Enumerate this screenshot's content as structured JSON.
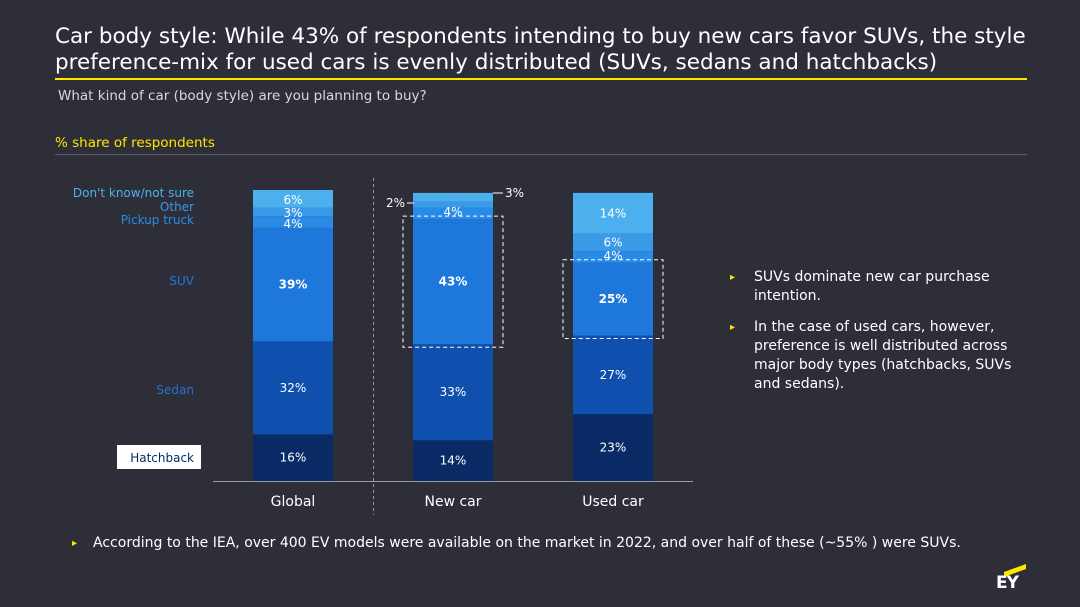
{
  "title": "Car body style: While 43% of respondents intending to buy new cars favor SUVs, the style preference-mix for used cars is evenly distributed (SUVs, sedans and hatchbacks)",
  "subtitle": "What kind of car (body style) are you planning to buy?",
  "axis_caption": "% share of respondents",
  "bullets": [
    "SUVs dominate new car purchase intention.",
    "In the case of used cars, however, preference is well distributed across major body types (hatchbacks, SUVs and sedans)."
  ],
  "footnote": "According to the IEA, over 400 EV models were available on the market in 2022, and over half of these (~55% ) were SUVs.",
  "logo_text": "EY",
  "colors": {
    "background": "#2e2e38",
    "accent": "#ffe600",
    "hatchback": "#0a2a66",
    "sedan": "#0f4fad",
    "suv": "#1e78dc",
    "pickup": "#2a8be6",
    "other": "#3a9ae8",
    "dont_know": "#4cb0ef"
  },
  "chart_data": {
    "type": "bar",
    "stacked": true,
    "categories": [
      "Global",
      "New car",
      "Used car"
    ],
    "series": [
      {
        "name": "Hatchback",
        "values": [
          16,
          14,
          23
        ],
        "labels": [
          "16%",
          "14%",
          "23%"
        ]
      },
      {
        "name": "Sedan",
        "values": [
          32,
          33,
          27
        ],
        "labels": [
          "32%",
          "33%",
          "27%"
        ]
      },
      {
        "name": "SUV",
        "values": [
          39,
          43,
          25
        ],
        "labels": [
          "39%",
          "43%",
          "25%"
        ]
      },
      {
        "name": "Pickup truck",
        "values": [
          4,
          4,
          4
        ],
        "labels": [
          "4%",
          "4%",
          "4%"
        ]
      },
      {
        "name": "Other",
        "values": [
          3,
          2,
          6
        ],
        "labels": [
          "3%",
          "2%",
          "6%"
        ]
      },
      {
        "name": "Don't know/not sure",
        "values": [
          6,
          3,
          14
        ],
        "labels": [
          "6%",
          "3%",
          "14%"
        ]
      }
    ],
    "highlight": {
      "series": "SUV",
      "categories": [
        "New car",
        "Used car"
      ]
    },
    "ylim": [
      0,
      100
    ],
    "legend": "left",
    "grid": false
  }
}
